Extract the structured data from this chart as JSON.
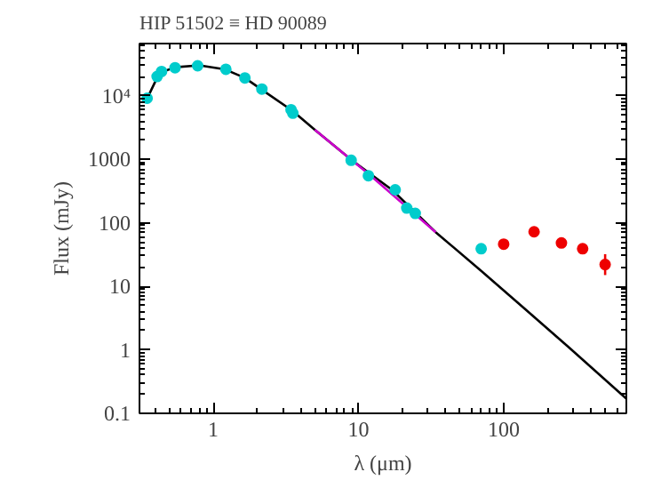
{
  "chart_data": {
    "type": "scatter",
    "title": "HIP 51502 ≡ HD 90089",
    "xlabel": "λ (μm)",
    "ylabel": "Flux (mJy)",
    "log": "xy",
    "grid": false,
    "marker": "circle",
    "xlim": [
      0.31,
      700
    ],
    "ylim": [
      0.1,
      66000
    ],
    "xticks": [
      1,
      10,
      100
    ],
    "yticks": [
      0.1,
      1,
      10,
      100,
      1000,
      {
        "value": 10000,
        "label": "10⁴"
      }
    ],
    "series": [
      {
        "type": "line",
        "color": "#000000",
        "line_style": "solid",
        "marker": "none",
        "x": [
          0.35,
          0.4,
          0.45,
          0.55,
          0.8,
          1.2,
          1.65,
          2.2,
          3.5,
          5,
          9,
          17,
          34,
          70,
          140,
          280,
          700
        ],
        "values": [
          9000,
          17000,
          24000,
          28000,
          30000,
          26000,
          19000,
          12000,
          5800,
          2900,
          960,
          330,
          71,
          17.5,
          4.4,
          1.1,
          0.17
        ]
      },
      {
        "type": "line",
        "color": "#cc00cc",
        "line_style": "solid",
        "marker": "none",
        "x": [
          5,
          12,
          34
        ],
        "values": [
          2900,
          560,
          71
        ]
      },
      {
        "color": "#00cccc",
        "x": [
          0.35,
          0.41,
          0.44,
          0.545,
          0.78,
          1.22,
          1.65,
          2.16,
          3.43,
          3.53,
          8.9,
          11.7,
          17.9,
          21.5,
          24.6,
          70
        ],
        "values": [
          9100,
          20000,
          24000,
          27500,
          29500,
          26000,
          19000,
          12700,
          6000,
          5300,
          960,
          550,
          330,
          170,
          140,
          39
        ]
      },
      {
        "color": "#ee0000",
        "x": [
          100,
          162,
          250,
          350,
          500
        ],
        "values": [
          46,
          72,
          48,
          39,
          22
        ],
        "errors": [
          null,
          null,
          null,
          null,
          [
            15,
            32
          ]
        ]
      }
    ]
  }
}
